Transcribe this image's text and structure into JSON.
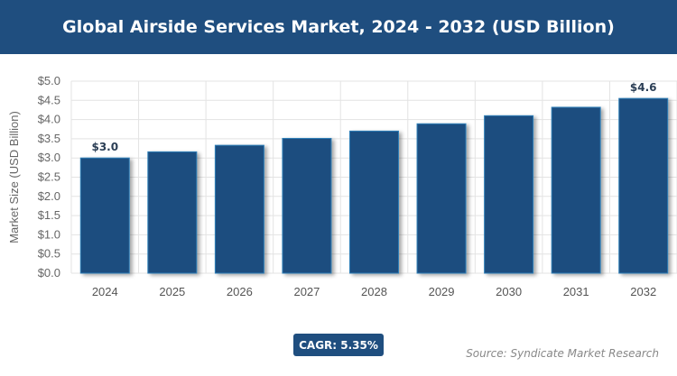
{
  "chart_data": {
    "type": "bar",
    "title": "Global Airside Services Market, 2024 - 2032 (USD Billion)",
    "ylabel": "Market Size (USD Billion)",
    "xlabel": "",
    "categories": [
      "2024",
      "2025",
      "2026",
      "2027",
      "2028",
      "2029",
      "2030",
      "2031",
      "2032"
    ],
    "values": [
      3.0,
      3.16,
      3.33,
      3.51,
      3.7,
      3.89,
      4.1,
      4.32,
      4.55
    ],
    "data_labels": {
      "2024": "$3.0",
      "2032": "$4.6"
    },
    "ylim": [
      0,
      5
    ],
    "yticks": [
      "$0.0",
      "$0.5",
      "$1.0",
      "$1.5",
      "$2.0",
      "$2.5",
      "$3.0",
      "$3.5",
      "$4.0",
      "$4.5",
      "$5.0"
    ],
    "grid": true,
    "bar_color": "#1f4e7f"
  },
  "cagr": "CAGR: 5.35%",
  "source": "Source: Syndicate Market Research"
}
